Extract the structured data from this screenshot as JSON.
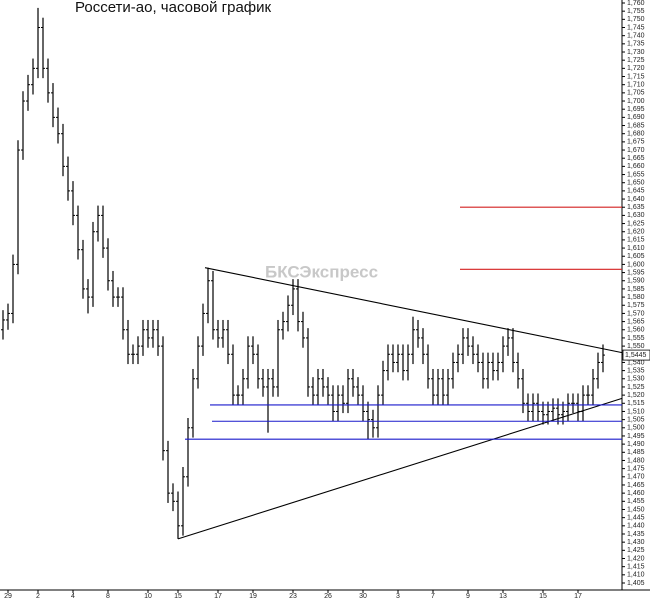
{
  "chart_data": {
    "type": "candlestick",
    "title": "Россети-ао, часовой график",
    "watermark": "БКСЭкспресс",
    "color": "#000000",
    "categories": [
      null,
      "29",
      null,
      null,
      null,
      null,
      null,
      "2",
      null,
      null,
      null,
      null,
      null,
      null,
      "4",
      null,
      null,
      null,
      null,
      null,
      null,
      "8",
      null,
      null,
      null,
      null,
      null,
      null,
      null,
      "10",
      null,
      null,
      null,
      null,
      null,
      "15",
      null,
      null,
      null,
      null,
      null,
      null,
      null,
      "17",
      null,
      null,
      null,
      null,
      null,
      null,
      "19",
      null,
      null,
      null,
      null,
      null,
      null,
      null,
      "23",
      null,
      null,
      null,
      null,
      null,
      null,
      "26",
      null,
      null,
      null,
      null,
      null,
      null,
      "30",
      null,
      null,
      null,
      null,
      null,
      null,
      "3",
      null,
      null,
      null,
      null,
      null,
      null,
      "7",
      null,
      null,
      null,
      null,
      null,
      null,
      "9",
      null,
      null,
      null,
      null,
      null,
      null,
      "13",
      null,
      null,
      null,
      null,
      null,
      null,
      null,
      "15",
      null,
      null,
      null,
      null,
      null,
      null,
      "17",
      null,
      null,
      null,
      null,
      null
    ],
    "open": [
      1.56,
      1.566,
      1.57,
      1.6,
      1.67,
      1.7,
      1.71,
      1.72,
      1.745,
      1.72,
      1.705,
      1.69,
      1.68,
      1.66,
      1.645,
      1.63,
      1.609,
      1.585,
      1.58,
      1.62,
      1.63,
      1.61,
      1.59,
      1.58,
      1.58,
      1.56,
      1.545,
      1.545,
      1.55,
      1.56,
      1.555,
      1.56,
      1.55,
      1.486,
      1.46,
      1.455,
      1.44,
      1.47,
      1.5,
      1.53,
      1.55,
      1.57,
      1.59,
      1.56,
      1.555,
      1.56,
      1.545,
      1.52,
      1.52,
      1.53,
      1.55,
      1.545,
      1.53,
      1.525,
      1.53,
      1.525,
      1.56,
      1.565,
      1.575,
      1.585,
      1.565,
      1.555,
      1.525,
      1.52,
      1.53,
      1.525,
      1.52,
      1.51,
      1.52,
      1.515,
      1.53,
      1.525,
      1.52,
      1.51,
      1.505,
      1.5,
      1.52,
      1.535,
      1.545,
      1.54,
      1.545,
      1.535,
      1.545,
      1.56,
      1.555,
      1.545,
      1.53,
      1.52,
      1.53,
      1.52,
      1.53,
      1.54,
      1.545,
      1.555,
      1.55,
      1.545,
      1.54,
      1.53,
      1.54,
      1.535,
      1.54,
      1.55,
      1.555,
      1.54,
      1.53,
      1.515,
      1.51,
      1.515,
      1.51,
      1.508,
      1.51,
      1.512,
      1.508,
      1.51,
      1.515,
      1.515,
      1.51,
      1.52,
      1.52,
      1.53,
      1.54
    ],
    "high": [
      1.572,
      1.576,
      1.606,
      1.676,
      1.706,
      1.716,
      1.726,
      1.757,
      1.751,
      1.726,
      1.711,
      1.696,
      1.686,
      1.666,
      1.651,
      1.636,
      1.615,
      1.591,
      1.626,
      1.636,
      1.636,
      1.616,
      1.596,
      1.586,
      1.586,
      1.566,
      1.551,
      1.556,
      1.566,
      1.566,
      1.566,
      1.566,
      1.556,
      1.492,
      1.466,
      1.461,
      1.476,
      1.506,
      1.536,
      1.556,
      1.576,
      1.598,
      1.596,
      1.566,
      1.566,
      1.566,
      1.551,
      1.526,
      1.536,
      1.556,
      1.556,
      1.551,
      1.536,
      1.536,
      1.536,
      1.566,
      1.571,
      1.581,
      1.591,
      1.591,
      1.571,
      1.561,
      1.531,
      1.536,
      1.536,
      1.531,
      1.526,
      1.526,
      1.526,
      1.536,
      1.536,
      1.531,
      1.526,
      1.516,
      1.511,
      1.526,
      1.541,
      1.551,
      1.551,
      1.551,
      1.551,
      1.551,
      1.568,
      1.566,
      1.561,
      1.551,
      1.536,
      1.536,
      1.536,
      1.536,
      1.546,
      1.551,
      1.561,
      1.561,
      1.556,
      1.551,
      1.546,
      1.546,
      1.546,
      1.546,
      1.556,
      1.561,
      1.561,
      1.546,
      1.536,
      1.521,
      1.521,
      1.521,
      1.516,
      1.516,
      1.518,
      1.518,
      1.516,
      1.521,
      1.521,
      1.521,
      1.526,
      1.526,
      1.536,
      1.546,
      1.551
    ],
    "low": [
      1.554,
      1.56,
      1.564,
      1.594,
      1.664,
      1.694,
      1.704,
      1.714,
      1.714,
      1.699,
      1.684,
      1.674,
      1.654,
      1.639,
      1.624,
      1.603,
      1.579,
      1.57,
      1.574,
      1.614,
      1.604,
      1.584,
      1.574,
      1.574,
      1.554,
      1.539,
      1.539,
      1.539,
      1.544,
      1.549,
      1.549,
      1.544,
      1.48,
      1.454,
      1.449,
      1.432,
      1.434,
      1.464,
      1.494,
      1.524,
      1.544,
      1.564,
      1.554,
      1.549,
      1.549,
      1.539,
      1.514,
      1.514,
      1.514,
      1.524,
      1.539,
      1.524,
      1.519,
      1.497,
      1.519,
      1.519,
      1.554,
      1.559,
      1.569,
      1.559,
      1.549,
      1.519,
      1.514,
      1.514,
      1.519,
      1.514,
      1.504,
      1.504,
      1.509,
      1.509,
      1.519,
      1.514,
      1.504,
      1.493,
      1.494,
      1.494,
      1.514,
      1.529,
      1.534,
      1.534,
      1.529,
      1.529,
      1.539,
      1.549,
      1.539,
      1.524,
      1.514,
      1.514,
      1.514,
      1.514,
      1.524,
      1.534,
      1.539,
      1.544,
      1.539,
      1.534,
      1.524,
      1.524,
      1.529,
      1.529,
      1.534,
      1.544,
      1.534,
      1.524,
      1.509,
      1.504,
      1.504,
      1.504,
      1.502,
      1.502,
      1.504,
      1.502,
      1.502,
      1.504,
      1.509,
      1.504,
      1.504,
      1.514,
      1.514,
      1.524,
      1.534
    ],
    "close": [
      1.566,
      1.57,
      1.6,
      1.67,
      1.7,
      1.71,
      1.72,
      1.745,
      1.72,
      1.705,
      1.69,
      1.68,
      1.66,
      1.645,
      1.63,
      1.609,
      1.585,
      1.58,
      1.62,
      1.63,
      1.61,
      1.59,
      1.58,
      1.58,
      1.56,
      1.545,
      1.545,
      1.55,
      1.56,
      1.555,
      1.56,
      1.55,
      1.486,
      1.46,
      1.455,
      1.44,
      1.47,
      1.5,
      1.53,
      1.55,
      1.57,
      1.59,
      1.56,
      1.555,
      1.56,
      1.545,
      1.52,
      1.52,
      1.53,
      1.55,
      1.545,
      1.53,
      1.525,
      1.53,
      1.525,
      1.56,
      1.565,
      1.575,
      1.585,
      1.565,
      1.555,
      1.525,
      1.52,
      1.53,
      1.525,
      1.52,
      1.51,
      1.52,
      1.515,
      1.53,
      1.525,
      1.52,
      1.51,
      1.505,
      1.5,
      1.52,
      1.535,
      1.545,
      1.54,
      1.545,
      1.535,
      1.545,
      1.56,
      1.555,
      1.545,
      1.53,
      1.52,
      1.53,
      1.52,
      1.53,
      1.54,
      1.545,
      1.555,
      1.55,
      1.545,
      1.54,
      1.53,
      1.54,
      1.535,
      1.54,
      1.55,
      1.555,
      1.54,
      1.53,
      1.515,
      1.51,
      1.515,
      1.51,
      1.508,
      1.51,
      1.512,
      1.508,
      1.51,
      1.515,
      1.515,
      1.51,
      1.52,
      1.52,
      1.53,
      1.54,
      1.5445
    ],
    "ylim": [
      1.405,
      1.76
    ],
    "yticks": [
      {
        "value": 1.405,
        "label": "1,405"
      },
      {
        "value": 1.41,
        "label": "1,410"
      },
      {
        "value": 1.415,
        "label": "1,415"
      },
      {
        "value": 1.42,
        "label": "1,420"
      },
      {
        "value": 1.425,
        "label": "1,425"
      },
      {
        "value": 1.43,
        "label": "1,430"
      },
      {
        "value": 1.435,
        "label": "1,435"
      },
      {
        "value": 1.44,
        "label": "1,440"
      },
      {
        "value": 1.445,
        "label": "1,445"
      },
      {
        "value": 1.45,
        "label": "1,450"
      },
      {
        "value": 1.455,
        "label": "1,455"
      },
      {
        "value": 1.46,
        "label": "1,460"
      },
      {
        "value": 1.465,
        "label": "1,465"
      },
      {
        "value": 1.47,
        "label": "1,470"
      },
      {
        "value": 1.475,
        "label": "1,475"
      },
      {
        "value": 1.48,
        "label": "1,480"
      },
      {
        "value": 1.485,
        "label": "1,485"
      },
      {
        "value": 1.49,
        "label": "1,490"
      },
      {
        "value": 1.495,
        "label": "1,495"
      },
      {
        "value": 1.5,
        "label": "1,500"
      },
      {
        "value": 1.505,
        "label": "1,505"
      },
      {
        "value": 1.51,
        "label": "1,510"
      },
      {
        "value": 1.515,
        "label": "1,515"
      },
      {
        "value": 1.52,
        "label": "1,520"
      },
      {
        "value": 1.525,
        "label": "1,525"
      },
      {
        "value": 1.53,
        "label": "1,530"
      },
      {
        "value": 1.535,
        "label": "1,535"
      },
      {
        "value": 1.54,
        "label": "1,540"
      },
      {
        "value": 1.545,
        "label": "1,545"
      },
      {
        "value": 1.55,
        "label": "1,550"
      },
      {
        "value": 1.555,
        "label": "1,555"
      },
      {
        "value": 1.56,
        "label": "1,560"
      },
      {
        "value": 1.565,
        "label": "1,565"
      },
      {
        "value": 1.57,
        "label": "1,570"
      },
      {
        "value": 1.575,
        "label": "1,575"
      },
      {
        "value": 1.58,
        "label": "1,580"
      },
      {
        "value": 1.585,
        "label": "1,585"
      },
      {
        "value": 1.59,
        "label": "1,590"
      },
      {
        "value": 1.595,
        "label": "1,595"
      },
      {
        "value": 1.6,
        "label": "1,600"
      },
      {
        "value": 1.605,
        "label": "1,605"
      },
      {
        "value": 1.61,
        "label": "1,610"
      },
      {
        "value": 1.615,
        "label": "1,615"
      },
      {
        "value": 1.62,
        "label": "1,620"
      },
      {
        "value": 1.625,
        "label": "1,625"
      },
      {
        "value": 1.63,
        "label": "1,630"
      },
      {
        "value": 1.635,
        "label": "1,635"
      },
      {
        "value": 1.64,
        "label": "1,640"
      },
      {
        "value": 1.645,
        "label": "1,645"
      },
      {
        "value": 1.65,
        "label": "1,650"
      },
      {
        "value": 1.655,
        "label": "1,655"
      },
      {
        "value": 1.66,
        "label": "1,660"
      },
      {
        "value": 1.665,
        "label": "1,665"
      },
      {
        "value": 1.67,
        "label": "1,670"
      },
      {
        "value": 1.675,
        "label": "1,675"
      },
      {
        "value": 1.68,
        "label": "1,680"
      },
      {
        "value": 1.685,
        "label": "1,685"
      },
      {
        "value": 1.69,
        "label": "1,690"
      },
      {
        "value": 1.695,
        "label": "1,695"
      },
      {
        "value": 1.7,
        "label": "1,700"
      },
      {
        "value": 1.705,
        "label": "1,705"
      },
      {
        "value": 1.71,
        "label": "1,710"
      },
      {
        "value": 1.715,
        "label": "1,715"
      },
      {
        "value": 1.72,
        "label": "1,720"
      },
      {
        "value": 1.725,
        "label": "1,725"
      },
      {
        "value": 1.73,
        "label": "1,730"
      },
      {
        "value": 1.735,
        "label": "1,735"
      },
      {
        "value": 1.74,
        "label": "1,740"
      },
      {
        "value": 1.745,
        "label": "1,745"
      },
      {
        "value": 1.75,
        "label": "1,750"
      },
      {
        "value": 1.755,
        "label": "1,755"
      },
      {
        "value": 1.76,
        "label": "1,760"
      }
    ],
    "last_price": {
      "value": 1.5445,
      "label": "1,5445"
    },
    "lines": [
      {
        "x": [
          40.4,
          123.8
        ],
        "y": [
          1.598,
          1.546
        ],
        "color": "#000000"
      },
      {
        "x": [
          35,
          123.8
        ],
        "y": [
          1.432,
          1.518
        ],
        "color": "#000000"
      },
      {
        "x": [
          41.4,
          123.8
        ],
        "y": [
          1.514,
          1.514
        ],
        "color": "#1a1acc"
      },
      {
        "x": [
          41.8,
          123.8
        ],
        "y": [
          1.504,
          1.504
        ],
        "color": "#1a1acc"
      },
      {
        "x": [
          36.4,
          123.8
        ],
        "y": [
          1.493,
          1.493
        ],
        "color": "#1a1acc"
      },
      {
        "x": [
          91.4,
          123.8
        ],
        "y": [
          1.635,
          1.635
        ],
        "color": "#d42020"
      },
      {
        "x": [
          91.4,
          123.8
        ],
        "y": [
          1.597,
          1.597
        ],
        "color": "#d42020"
      }
    ]
  }
}
